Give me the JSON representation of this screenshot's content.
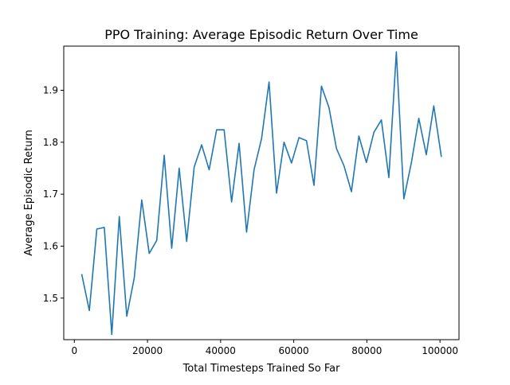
{
  "chart_data": {
    "type": "line",
    "title": "PPO Training: Average Episodic Return Over Time",
    "xlabel": "Total Timesteps Trained So Far",
    "ylabel": "Average Episodic Return",
    "xlim": [
      -2900,
      105200
    ],
    "ylim": [
      1.42,
      1.985
    ],
    "xticks": [
      0,
      20000,
      40000,
      60000,
      80000,
      100000
    ],
    "xtick_labels": [
      "0",
      "20000",
      "40000",
      "60000",
      "80000",
      "100000"
    ],
    "yticks": [
      1.5,
      1.6,
      1.7,
      1.8,
      1.9
    ],
    "ytick_labels": [
      "1.5",
      "1.6",
      "1.7",
      "1.8",
      "1.9"
    ],
    "grid": false,
    "series": [
      {
        "color": "#1f77b4",
        "x": [
          2048,
          4096,
          6144,
          8192,
          10240,
          12288,
          14336,
          16384,
          18432,
          20480,
          22528,
          24576,
          26624,
          28672,
          30720,
          32768,
          34816,
          36864,
          38912,
          40960,
          43008,
          45056,
          47104,
          49152,
          51200,
          53248,
          55296,
          57344,
          59392,
          61440,
          63488,
          65536,
          67584,
          69632,
          71680,
          73728,
          75776,
          77824,
          79872,
          81920,
          83968,
          86016,
          88064,
          90112,
          92160,
          94208,
          96256,
          98304,
          100352
        ],
        "y": [
          1.545,
          1.476,
          1.633,
          1.636,
          1.43,
          1.657,
          1.465,
          1.539,
          1.689,
          1.586,
          1.611,
          1.775,
          1.596,
          1.75,
          1.609,
          1.752,
          1.795,
          1.747,
          1.824,
          1.824,
          1.685,
          1.798,
          1.627,
          1.747,
          1.807,
          1.916,
          1.702,
          1.8,
          1.76,
          1.809,
          1.803,
          1.717,
          1.908,
          1.867,
          1.788,
          1.755,
          1.705,
          1.812,
          1.761,
          1.819,
          1.843,
          1.732,
          1.974,
          1.691,
          1.76,
          1.846,
          1.776,
          1.87,
          1.773
        ]
      }
    ]
  }
}
